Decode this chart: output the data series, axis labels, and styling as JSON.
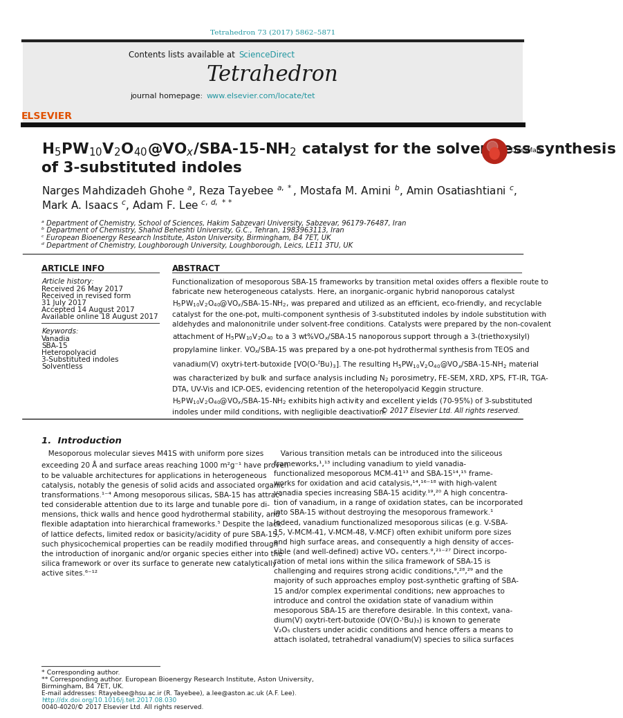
{
  "journal_ref": "Tetrahedron 73 (2017) 5862–5871",
  "contents_text": "Contents lists available at ",
  "sciencedirect": "ScienceDirect",
  "journal_name": "Tetrahedron",
  "journal_homepage_prefix": "journal homepage: ",
  "journal_url": "www.elsevier.com/locate/tet",
  "title_line1": "H₅PW₁₀V₂O₄₀@VOₓ/SBA-15-NH₂ catalyst for the solventless synthesis",
  "title_line2": "of 3-substituted indoles",
  "affil_a": "ᵃ Department of Chemistry, School of Sciences, Hakim Sabzevari University, Sabzevar, 96179-76487, Iran",
  "affil_b": "ᵇ Department of Chemistry, Shahid Beheshti University, G.C., Tehran, 1983963113, Iran",
  "affil_c": "ᶜ European Bioenergy Research Institute, Aston University, Birmingham, B4 7ET, UK",
  "affil_d": "ᵈ Department of Chemistry, Loughborough University, Loughborough, Leics, LE11 3TU, UK",
  "article_info_header": "ARTICLE INFO",
  "abstract_header": "ABSTRACT",
  "article_history_label": "Article history:",
  "received1": "Received 26 May 2017",
  "received2": "Received in revised form",
  "received2b": "31 July 2017",
  "accepted": "Accepted 14 August 2017",
  "available": "Available online 18 August 2017",
  "keywords_label": "Keywords:",
  "keywords": [
    "Vanadia",
    "SBA-15",
    "Heteropolyacid",
    "3-Substituted indoles",
    "Solventless"
  ],
  "copyright": "© 2017 Elsevier Ltd. All rights reserved.",
  "intro_header": "1.  Introduction",
  "footnote1": "* Corresponding author.",
  "footnote2": "** Corresponding author. European Bioenergy Research Institute, Aston University,",
  "footnote2b": "Birmingham, B4 7ET, UK.",
  "footnote_email": "E-mail addresses: Rtayebee@hsu.ac.ir (R. Tayebee), a.lee@aston.ac.uk (A.F. Lee).",
  "doi": "http://dx.doi.org/10.1016/j.tet.2017.08.030",
  "issn": "0040-4020/© 2017 Elsevier Ltd. All rights reserved.",
  "bg_color": "#ffffff",
  "text_color": "#1a1a1a",
  "link_color": "#2196a0",
  "elsevier_orange": "#e05000"
}
